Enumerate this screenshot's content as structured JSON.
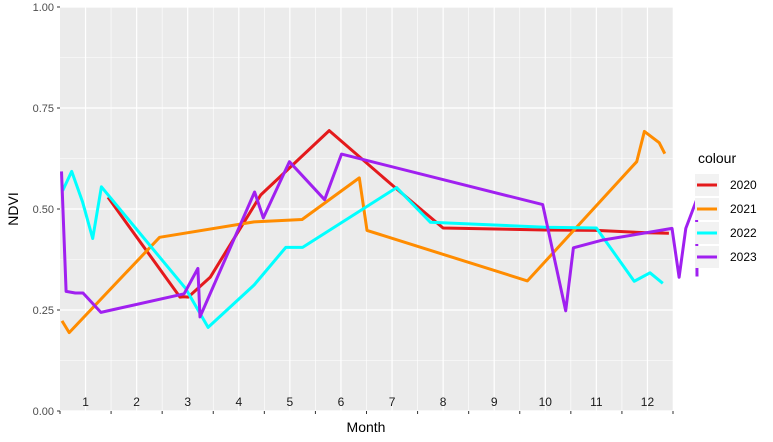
{
  "chart_data": {
    "type": "line",
    "xlabel": "Month",
    "ylabel": "NDVI",
    "x_categories": [
      "1",
      "2",
      "3",
      "4",
      "5",
      "6",
      "7",
      "8",
      "9",
      "10",
      "11",
      "12"
    ],
    "xlim": [
      0.5,
      12.5
    ],
    "ylim": [
      0,
      1
    ],
    "y_ticks": [
      0,
      0.25,
      0.5,
      0.75,
      1
    ],
    "y_tick_labels": [
      "0.00",
      "0.25",
      "0.50",
      "0.75",
      "1.00"
    ],
    "grid": true,
    "legend_title": "colour",
    "legend_position": "right",
    "series": [
      {
        "name": "2020",
        "color": "#e41a1c",
        "points": [
          [
            1.44,
            0.529
          ],
          [
            2.85,
            0.282
          ],
          [
            2.93,
            0.283
          ],
          [
            3.01,
            0.282
          ],
          [
            3.44,
            0.331
          ],
          [
            4.43,
            0.535
          ],
          [
            5.77,
            0.694
          ],
          [
            7.04,
            0.555
          ],
          [
            8.0,
            0.453
          ],
          [
            10.0,
            0.448
          ],
          [
            11.0,
            0.447
          ],
          [
            12.0,
            0.441
          ],
          [
            12.42,
            0.44
          ]
        ]
      },
      {
        "name": "2021",
        "color": "#ff8c00",
        "points": [
          [
            0.54,
            0.223
          ],
          [
            0.68,
            0.194
          ],
          [
            2.45,
            0.43
          ],
          [
            4.3,
            0.468
          ],
          [
            5.24,
            0.474
          ],
          [
            6.36,
            0.577
          ],
          [
            6.51,
            0.447
          ],
          [
            9.65,
            0.322
          ],
          [
            11.79,
            0.617
          ],
          [
            11.94,
            0.692
          ],
          [
            12.23,
            0.664
          ],
          [
            12.34,
            0.637
          ]
        ]
      },
      {
        "name": "2022",
        "color": "#00ffff",
        "points": [
          [
            0.55,
            0.545
          ],
          [
            0.73,
            0.593
          ],
          [
            0.94,
            0.518
          ],
          [
            1.14,
            0.427
          ],
          [
            1.31,
            0.555
          ],
          [
            2.96,
            0.303
          ],
          [
            3.4,
            0.207
          ],
          [
            4.3,
            0.312
          ],
          [
            4.92,
            0.405
          ],
          [
            5.25,
            0.405
          ],
          [
            7.09,
            0.553
          ],
          [
            7.75,
            0.467
          ],
          [
            10.0,
            0.455
          ],
          [
            11.0,
            0.453
          ],
          [
            11.74,
            0.321
          ],
          [
            12.05,
            0.342
          ],
          [
            12.3,
            0.316
          ]
        ]
      },
      {
        "name": "2023",
        "color": "#a020f0",
        "points": [
          [
            0.53,
            0.593
          ],
          [
            0.62,
            0.296
          ],
          [
            0.8,
            0.292
          ],
          [
            0.95,
            0.292
          ],
          [
            1.3,
            0.244
          ],
          [
            2.93,
            0.29
          ],
          [
            3.2,
            0.353
          ],
          [
            3.24,
            0.233
          ],
          [
            4.31,
            0.542
          ],
          [
            4.48,
            0.478
          ],
          [
            4.99,
            0.617
          ],
          [
            5.68,
            0.523
          ],
          [
            6.01,
            0.636
          ],
          [
            9.95,
            0.511
          ],
          [
            10.4,
            0.248
          ],
          [
            10.55,
            0.404
          ],
          [
            11.12,
            0.423
          ],
          [
            12.48,
            0.452
          ],
          [
            12.62,
            0.331
          ],
          [
            12.75,
            0.452
          ],
          [
            12.96,
            0.522
          ],
          [
            12.97,
            0.333
          ]
        ]
      }
    ]
  }
}
